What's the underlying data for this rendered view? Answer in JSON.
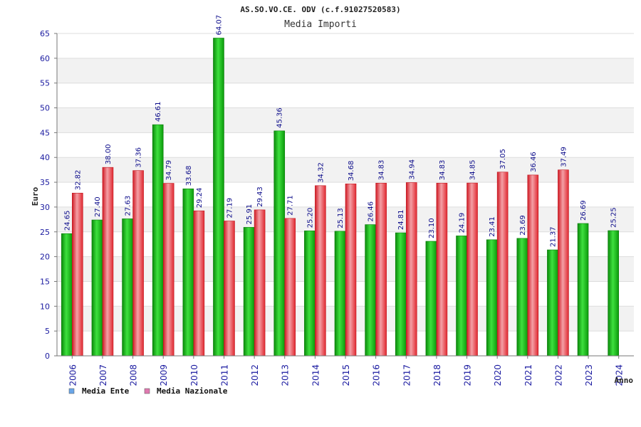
{
  "chart_data": {
    "type": "bar",
    "title": "AS.SO.VO.CE. ODV (c.f.91027520583)",
    "subtitle": "Media Importi",
    "ylabel": "Euro",
    "xlabel": "Anno",
    "ylim": [
      0,
      65
    ],
    "yticks": [
      0,
      5,
      10,
      15,
      20,
      25,
      30,
      35,
      40,
      45,
      50,
      55,
      60,
      65
    ],
    "grid": true,
    "legend_position": "bottom-left",
    "categories": [
      "2006",
      "2007",
      "2008",
      "2009",
      "2010",
      "2011",
      "2012",
      "2013",
      "2014",
      "2015",
      "2016",
      "2017",
      "2018",
      "2019",
      "2020",
      "2021",
      "2022",
      "2023",
      "2024"
    ],
    "series": [
      {
        "name": "Media Ente",
        "color": "#1fbf1f",
        "legend_color": "#6aa6e8",
        "values": [
          24.65,
          27.4,
          27.63,
          46.61,
          33.68,
          64.07,
          25.91,
          45.36,
          25.2,
          25.13,
          26.46,
          24.81,
          23.1,
          24.19,
          23.41,
          23.69,
          21.37,
          26.69,
          25.25
        ],
        "labels": [
          "24.65",
          "27.40",
          "27.63",
          "46.61",
          "33.68",
          "64.07",
          "25.91",
          "45.36",
          "25.20",
          "25.13",
          "26.46",
          "24.81",
          "23.10",
          "24.19",
          "23.41",
          "23.69",
          "21.37",
          "26.69",
          "25.25"
        ]
      },
      {
        "name": "Media Nazionale",
        "color": "#e8323c",
        "legend_color": "#e07ab0",
        "values": [
          32.82,
          38.0,
          37.36,
          34.79,
          29.24,
          27.19,
          29.43,
          27.71,
          34.32,
          34.68,
          34.83,
          34.94,
          34.83,
          34.85,
          37.05,
          36.46,
          37.49,
          null,
          null
        ],
        "labels": [
          "32.82",
          "38.00",
          "37.36",
          "34.79",
          "29.24",
          "27.19",
          "29.43",
          "27.71",
          "34.32",
          "34.68",
          "34.83",
          "34.94",
          "34.83",
          "34.85",
          "37.05",
          "36.46",
          "37.49",
          null,
          null
        ]
      }
    ]
  }
}
